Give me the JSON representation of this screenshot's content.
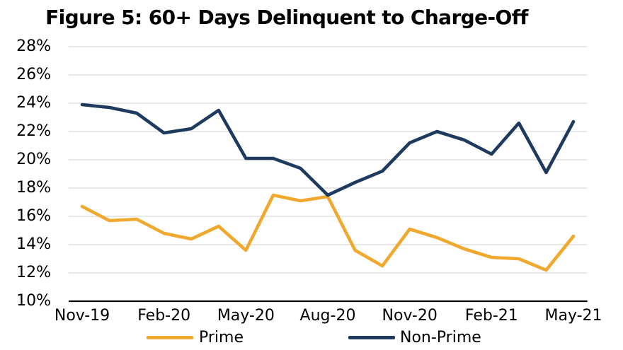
{
  "chart_data": {
    "type": "line",
    "title": "Figure 5: 60+ Days Delinquent to Charge-Off",
    "categories": [
      "Nov-19",
      "Dec-19",
      "Jan-20",
      "Feb-20",
      "Mar-20",
      "Apr-20",
      "May-20",
      "Jun-20",
      "Jul-20",
      "Aug-20",
      "Sep-20",
      "Oct-20",
      "Nov-20",
      "Dec-20",
      "Jan-21",
      "Feb-21",
      "Mar-21",
      "Apr-21",
      "May-21"
    ],
    "x_tick_labels": [
      "Nov-19",
      "Feb-20",
      "May-20",
      "Aug-20",
      "Nov-20",
      "Feb-21",
      "May-21"
    ],
    "y_ticks": [
      "28%",
      "26%",
      "24%",
      "22%",
      "20%",
      "18%",
      "16%",
      "14%",
      "12%",
      "10%"
    ],
    "ylim": [
      10,
      28
    ],
    "y_unit": "%",
    "grid": "horizontal",
    "gridline_color": "#d9d9d9",
    "axis_color": "#000000",
    "legend_position": "bottom",
    "series": [
      {
        "name": "Prime",
        "color": "#f0a92e",
        "values": [
          16.7,
          15.7,
          15.8,
          14.8,
          14.4,
          15.3,
          13.6,
          17.5,
          17.1,
          17.4,
          13.6,
          12.5,
          15.1,
          14.5,
          13.7,
          13.1,
          13.0,
          12.2,
          14.6
        ]
      },
      {
        "name": "Non-Prime",
        "color": "#1e3a5e",
        "values": [
          23.9,
          23.7,
          23.3,
          21.9,
          22.2,
          23.5,
          20.1,
          20.1,
          19.4,
          17.5,
          18.4,
          19.2,
          21.2,
          22.0,
          21.4,
          20.4,
          22.6,
          19.1,
          22.7
        ]
      }
    ]
  }
}
